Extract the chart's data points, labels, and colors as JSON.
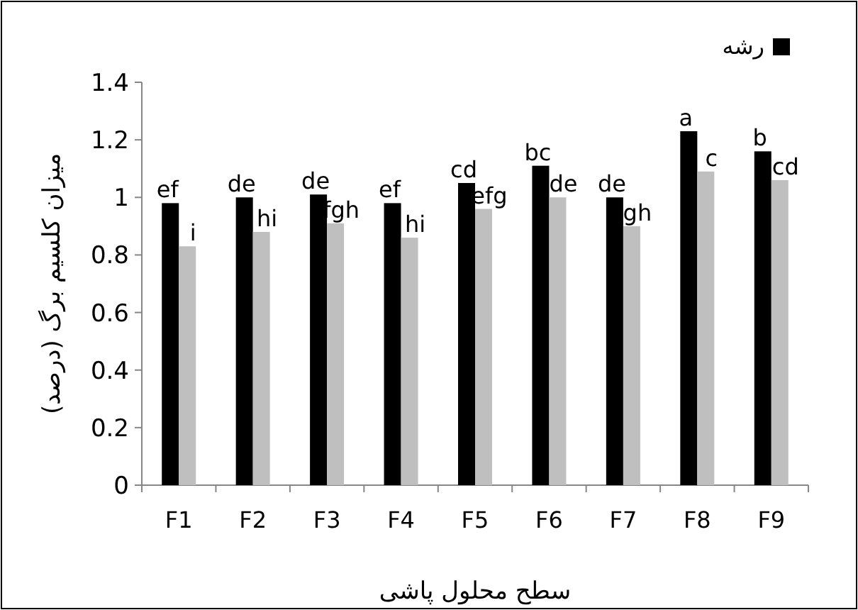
{
  "chart_data": {
    "type": "bar",
    "xlabel": "سطح محلول پاشی",
    "ylabel": "میزان کلسیم برگ (درصد)",
    "categories": [
      "F1",
      "F2",
      "F3",
      "F4",
      "F5",
      "F6",
      "F7",
      "F8",
      "F9"
    ],
    "series": [
      {
        "name": "رشه",
        "color": "#000000",
        "values": [
          0.98,
          1.0,
          1.01,
          0.98,
          1.05,
          1.11,
          1.0,
          1.23,
          1.16
        ],
        "value_labels": [
          "ef",
          "de",
          "de",
          "ef",
          "cd",
          "bc",
          "de",
          "a",
          "b"
        ]
      },
      {
        "color": "#bfbfbf",
        "values": [
          0.83,
          0.88,
          0.91,
          0.86,
          0.96,
          1.0,
          0.9,
          1.09,
          1.06
        ],
        "value_labels": [
          "i",
          "hi",
          "fgh",
          "hi",
          "efg",
          "de",
          "gh",
          "c",
          "cd"
        ]
      }
    ],
    "ylim": [
      0,
      1.4
    ],
    "yticks": [
      0,
      0.2,
      0.4,
      0.6,
      0.8,
      1,
      1.2,
      1.4
    ],
    "grid": false,
    "legend": "top right"
  }
}
